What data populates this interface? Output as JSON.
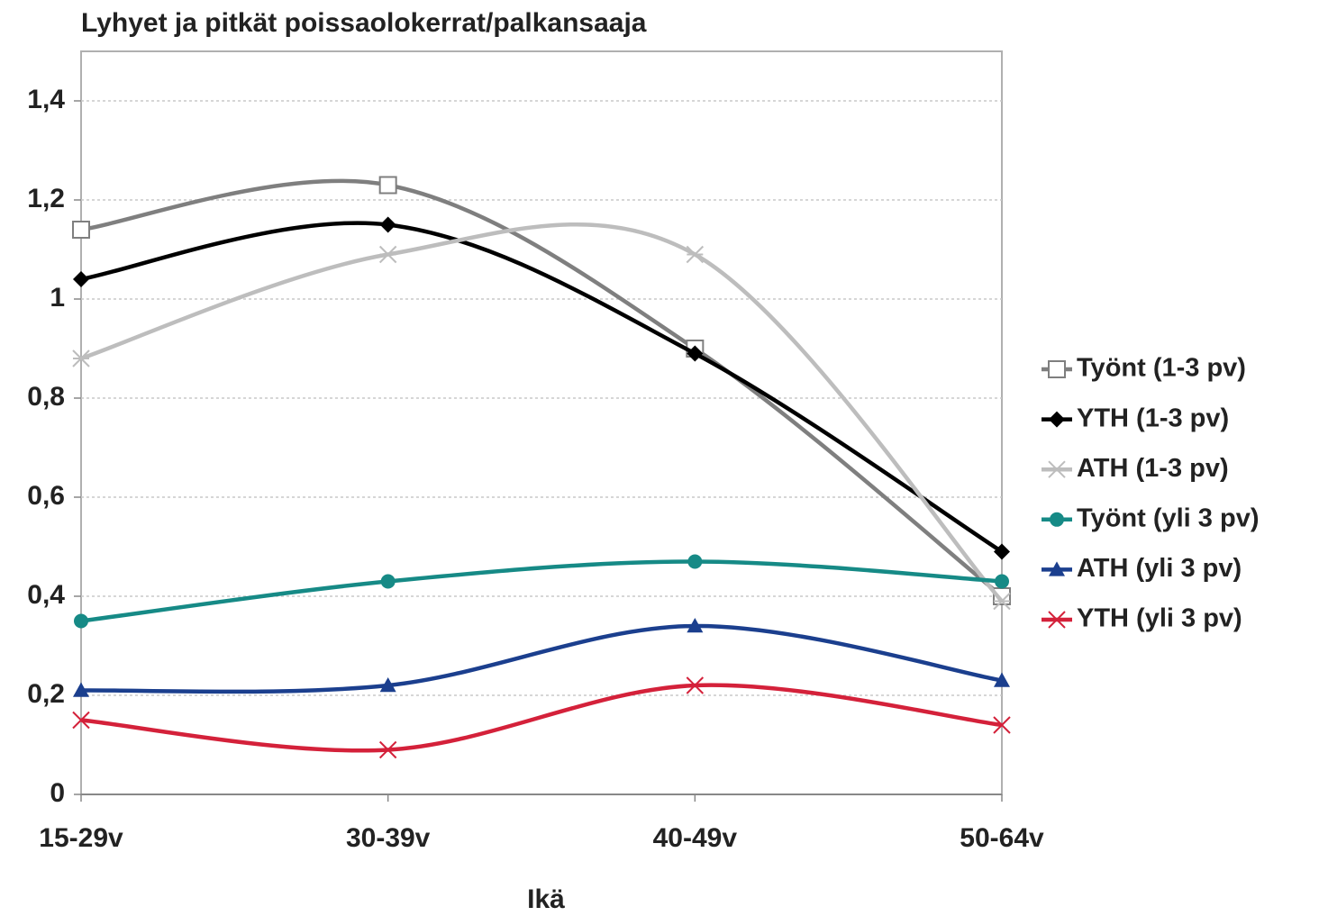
{
  "chart_data": {
    "type": "line",
    "title": "Lyhyet ja pitkät poissaolokerrat/palkansaaja",
    "x_label": "Ikä",
    "categories": [
      "15-29v",
      "30-39v",
      "40-49v",
      "50-64v"
    ],
    "smooth": true,
    "grid": true,
    "legend": "right",
    "ylim": [
      0,
      1.5
    ],
    "yticks": [
      0,
      {
        "value": 0.2,
        "label": "0,2"
      },
      {
        "value": 0.4,
        "label": "0,4"
      },
      {
        "value": 0.6,
        "label": "0,6"
      },
      {
        "value": 0.8,
        "label": "0,8"
      },
      1,
      {
        "value": 1.2,
        "label": "1,2"
      },
      {
        "value": 1.4,
        "label": "1,4"
      }
    ],
    "series": [
      {
        "name": "Työnt (1-3 pv)",
        "color": "#7f7f7f",
        "marker": "square",
        "values": [
          1.14,
          1.23,
          0.9,
          0.4
        ]
      },
      {
        "name": "YTH (1-3 pv)",
        "color": "#000000",
        "marker": "diamond",
        "values": [
          1.04,
          1.15,
          0.89,
          0.49
        ]
      },
      {
        "name": "ATH (1-3 pv)",
        "color": "#bdbdbd",
        "marker": "star",
        "values": [
          0.88,
          1.09,
          1.09,
          0.39
        ]
      },
      {
        "name": "Työnt (yli 3 pv)",
        "color": "#168a86",
        "marker": "circle",
        "values": [
          0.35,
          0.43,
          0.47,
          0.43
        ]
      },
      {
        "name": "ATH (yli 3 pv)",
        "color": "#1b3f8e",
        "marker": "triangle",
        "values": [
          0.21,
          0.22,
          0.34,
          0.23
        ]
      },
      {
        "name": "YTH (yli 3 pv)",
        "color": "#d4213a",
        "marker": "x",
        "values": [
          0.15,
          0.09,
          0.22,
          0.14
        ]
      }
    ]
  }
}
